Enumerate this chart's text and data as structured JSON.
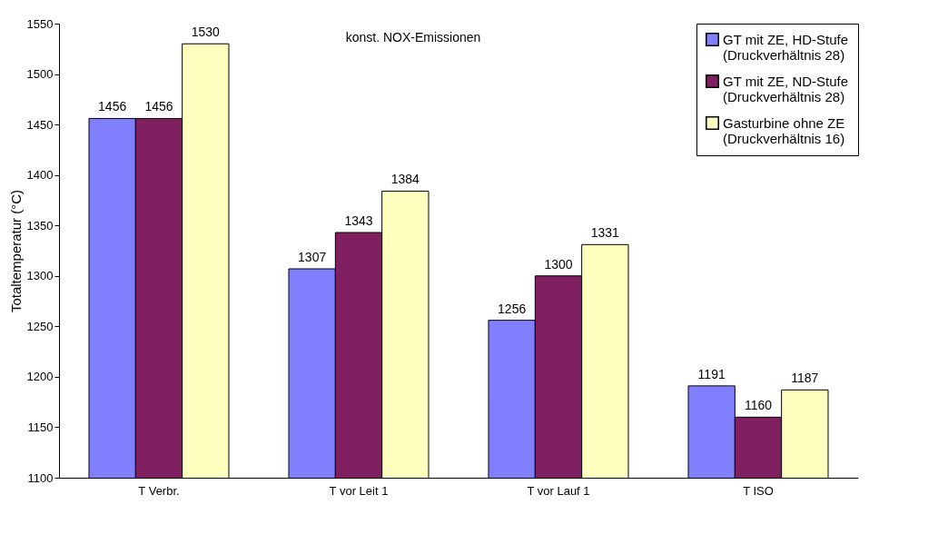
{
  "chart_data": {
    "type": "bar",
    "ylabel": "Totaltemperatur (°C)",
    "categories": [
      "T Verbr.",
      "T vor Leit 1",
      "T vor Lauf 1",
      "T ISO"
    ],
    "series": [
      {
        "name": "GT mit ZE, HD-Stufe\n(Druckverhältnis 28)",
        "color": "#8080ff",
        "values": [
          1456,
          1307,
          1256,
          1191
        ]
      },
      {
        "name": "GT mit ZE, ND-Stufe\n(Druckverhältnis 28)",
        "color": "#802060",
        "values": [
          1456,
          1343,
          1300,
          1160
        ]
      },
      {
        "name": "Gasturbine ohne ZE\n(Druckverhältnis 16)",
        "color": "#ffffc0",
        "values": [
          1530,
          1384,
          1331,
          1187
        ]
      }
    ],
    "ylim": [
      1100,
      1550
    ],
    "yticks": [
      1100,
      1150,
      1200,
      1250,
      1300,
      1350,
      1400,
      1450,
      1500,
      1550
    ],
    "grid": false,
    "legend": "top right",
    "data_labels": true,
    "annotations": [
      "konst. NOX-Emissionen"
    ]
  }
}
